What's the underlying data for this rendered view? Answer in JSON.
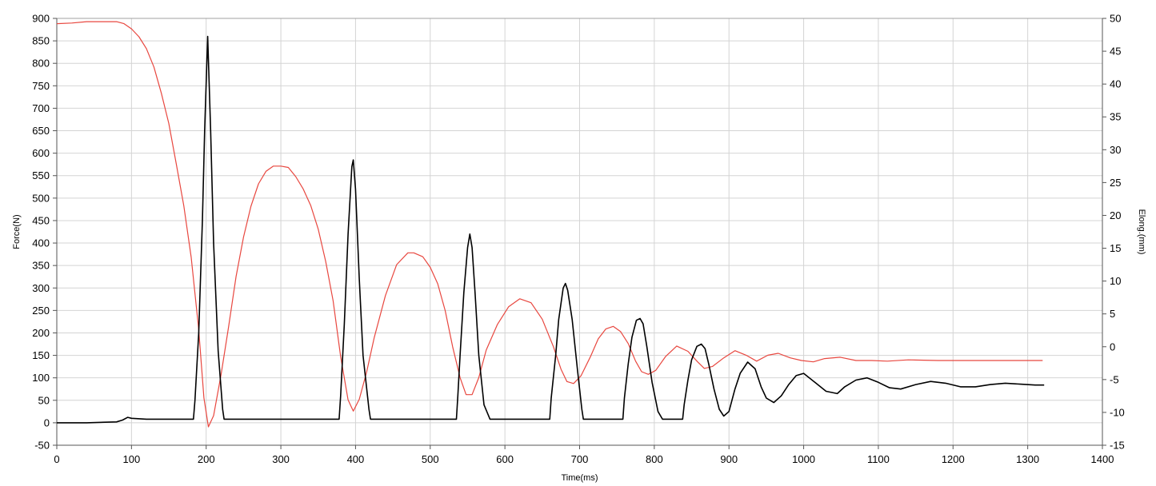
{
  "chart_data": {
    "type": "line",
    "xlabel": "Time(ms)",
    "ylabel_left": "Force(N)",
    "ylabel_right": "Elong.(mm)",
    "xlim": [
      0,
      1400
    ],
    "ylim_left": [
      -50,
      900
    ],
    "ylim_right": [
      -15,
      50
    ],
    "x_ticks": [
      0,
      100,
      200,
      300,
      400,
      500,
      600,
      700,
      800,
      900,
      1000,
      1100,
      1200,
      1300,
      1400
    ],
    "y_left_ticks": [
      -50,
      0,
      50,
      100,
      150,
      200,
      250,
      300,
      350,
      400,
      450,
      500,
      550,
      600,
      650,
      700,
      750,
      800,
      850,
      900
    ],
    "y_right_ticks": [
      -15,
      -10,
      -5,
      0,
      5,
      10,
      15,
      20,
      25,
      30,
      35,
      40,
      45,
      50
    ],
    "grid": true,
    "series": [
      {
        "axis": "right",
        "color": "#e8473f",
        "x": [
          0,
          20,
          40,
          60,
          80,
          90,
          100,
          110,
          120,
          130,
          140,
          150,
          160,
          170,
          180,
          190,
          197,
          203,
          210,
          220,
          230,
          240,
          250,
          260,
          270,
          280,
          290,
          300,
          310,
          320,
          330,
          340,
          350,
          360,
          370,
          380,
          390,
          397,
          405,
          415,
          425,
          440,
          455,
          470,
          478,
          490,
          500,
          510,
          520,
          530,
          540,
          548,
          556,
          565,
          575,
          590,
          605,
          620,
          635,
          650,
          665,
          675,
          683,
          692,
          702,
          715,
          725,
          735,
          745,
          755,
          765,
          775,
          783,
          792,
          802,
          815,
          830,
          845,
          858,
          867,
          878,
          893,
          908,
          923,
          937,
          952,
          966,
          982,
          997,
          1013,
          1028,
          1049,
          1070,
          1091,
          1112,
          1140,
          1180,
          1230,
          1280,
          1320
        ],
        "values": [
          49.2,
          49.3,
          49.5,
          49.5,
          49.5,
          49.2,
          48.4,
          47.2,
          45.4,
          42.6,
          38.6,
          34.0,
          27.8,
          21.5,
          13.6,
          2.6,
          -7.8,
          -12.2,
          -10.5,
          -4.2,
          3.0,
          10.7,
          16.7,
          21.4,
          24.8,
          26.7,
          27.5,
          27.5,
          27.3,
          25.9,
          24.0,
          21.5,
          17.9,
          13.0,
          7.0,
          -1.5,
          -8.1,
          -9.8,
          -8.0,
          -3.8,
          1.4,
          7.8,
          12.5,
          14.3,
          14.3,
          13.7,
          12.1,
          9.6,
          5.5,
          0.0,
          -4.7,
          -7.3,
          -7.3,
          -4.7,
          -0.5,
          3.4,
          6.1,
          7.3,
          6.7,
          4.2,
          0.0,
          -3.4,
          -5.3,
          -5.6,
          -4.4,
          -1.4,
          1.2,
          2.7,
          3.1,
          2.3,
          0.5,
          -2.2,
          -3.8,
          -4.2,
          -3.6,
          -1.5,
          0.1,
          -0.7,
          -2.3,
          -3.3,
          -3.0,
          -1.7,
          -0.6,
          -1.3,
          -2.2,
          -1.3,
          -1.0,
          -1.7,
          -2.1,
          -2.3,
          -1.8,
          -1.6,
          -2.1,
          -2.1,
          -2.2,
          -2.0,
          -2.1,
          -2.1,
          -2.1,
          -2.1
        ]
      },
      {
        "axis": "left",
        "color": "#000000",
        "x": [
          0,
          40,
          80,
          88,
          95,
          100,
          120,
          150,
          175,
          183,
          185,
          190,
          195,
          198,
          202,
          206,
          210,
          216,
          222,
          224,
          230,
          260,
          300,
          350,
          378,
          380,
          385,
          390,
          395,
          397,
          400,
          405,
          410,
          418,
          420,
          430,
          470,
          500,
          535,
          537,
          540,
          545,
          550,
          553,
          556,
          560,
          565,
          572,
          580,
          582,
          600,
          640,
          660,
          662,
          668,
          672,
          678,
          681,
          684,
          690,
          697,
          703,
          705,
          720,
          740,
          758,
          760,
          765,
          770,
          776,
          781,
          785,
          790,
          797,
          805,
          811,
          813,
          820,
          838,
          840,
          845,
          850,
          857,
          863,
          868,
          873,
          880,
          887,
          893,
          900,
          908,
          915,
          925,
          935,
          943,
          950,
          960,
          970,
          980,
          990,
          1000,
          1015,
          1030,
          1045,
          1055,
          1070,
          1085,
          1100,
          1115,
          1130,
          1150,
          1170,
          1190,
          1210,
          1230,
          1250,
          1270,
          1290,
          1310,
          1322
        ],
        "values": [
          0,
          0,
          2,
          6,
          12,
          10,
          8,
          8,
          8,
          8,
          50,
          200,
          450,
          650,
          860,
          650,
          400,
          160,
          30,
          8,
          8,
          8,
          8,
          8,
          8,
          60,
          220,
          420,
          570,
          585,
          520,
          320,
          150,
          30,
          8,
          8,
          8,
          8,
          8,
          60,
          150,
          290,
          390,
          420,
          390,
          290,
          150,
          40,
          8,
          8,
          8,
          8,
          8,
          55,
          150,
          230,
          300,
          310,
          295,
          230,
          120,
          30,
          8,
          8,
          8,
          8,
          55,
          130,
          190,
          228,
          232,
          220,
          170,
          90,
          25,
          8,
          8,
          8,
          8,
          40,
          95,
          140,
          170,
          175,
          165,
          130,
          75,
          30,
          15,
          25,
          75,
          110,
          135,
          120,
          80,
          55,
          45,
          60,
          85,
          105,
          110,
          90,
          70,
          65,
          80,
          95,
          100,
          90,
          78,
          75,
          85,
          92,
          88,
          80,
          80,
          85,
          88,
          86,
          84,
          84
        ]
      }
    ]
  }
}
